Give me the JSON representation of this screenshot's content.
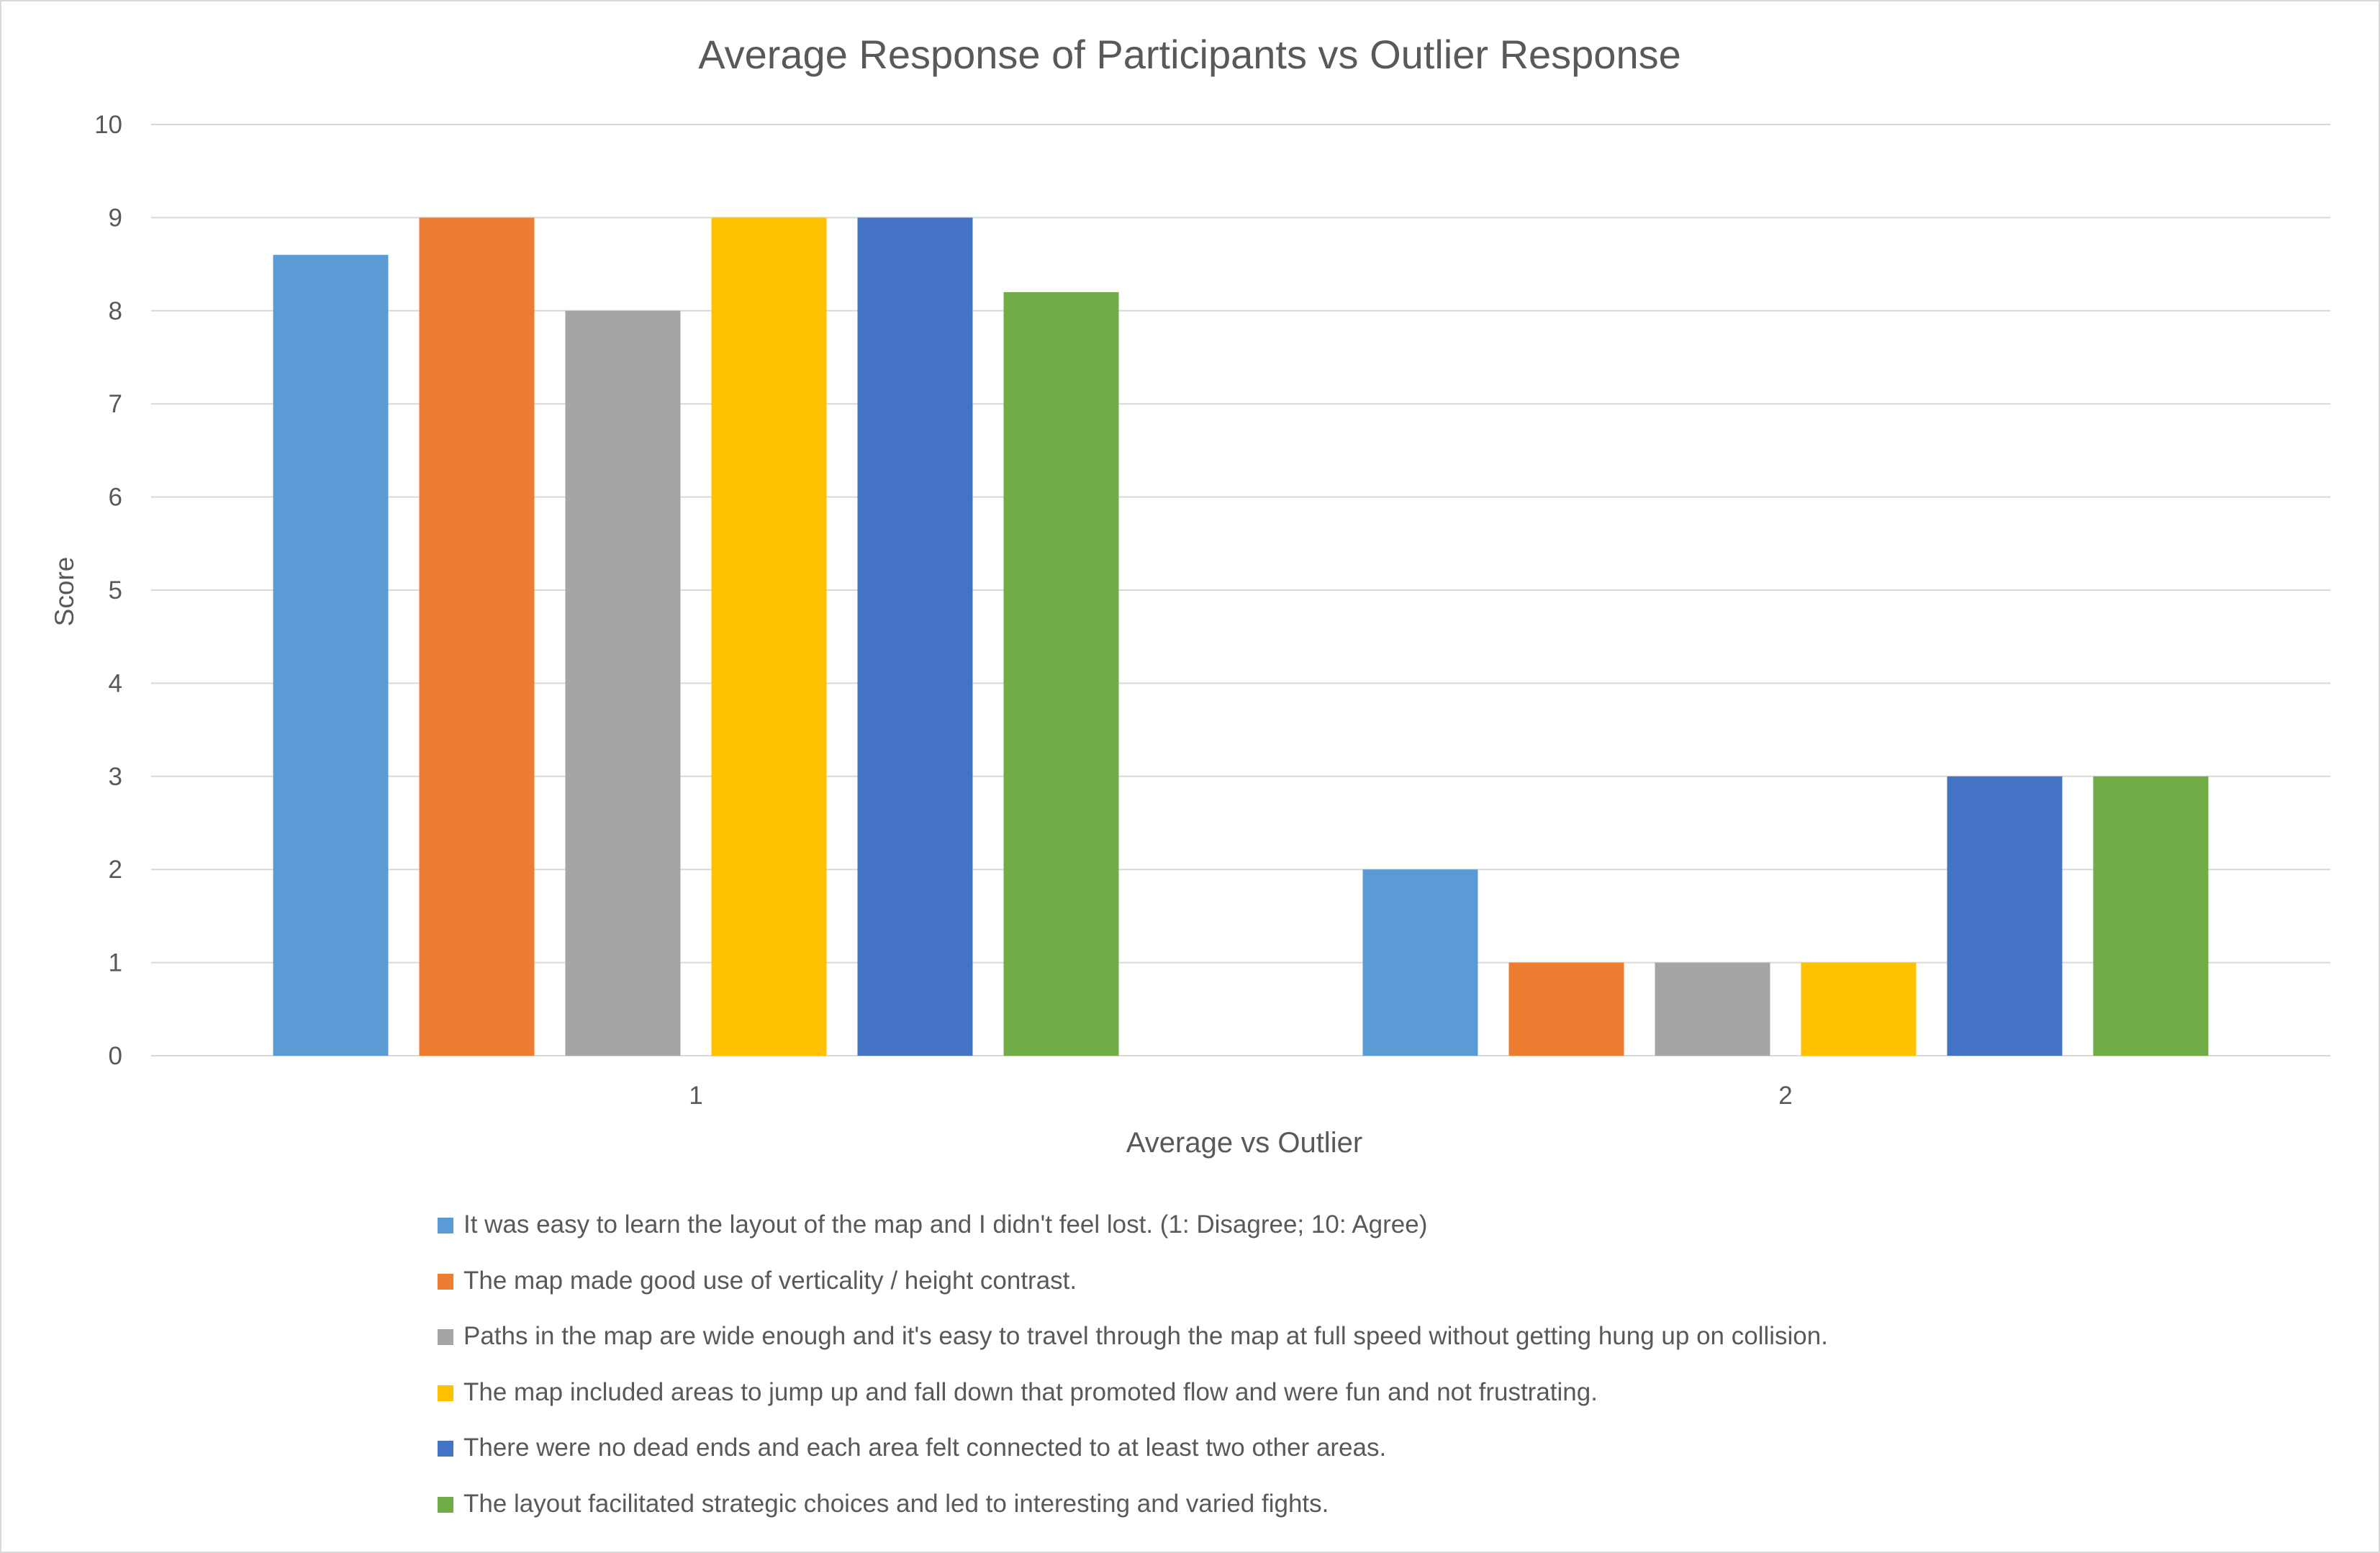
{
  "chart_data": {
    "type": "bar",
    "title": "Average Response of Participants vs Outlier Response",
    "xlabel": "Average vs Outlier",
    "ylabel": "Score",
    "categories": [
      "1",
      "2"
    ],
    "ylim": [
      0,
      10
    ],
    "yticks": [
      "0",
      "1",
      "2",
      "3",
      "4",
      "5",
      "6",
      "7",
      "8",
      "9",
      "10"
    ],
    "grid": true,
    "legend_position": "bottom",
    "series": [
      {
        "name": "It was easy to learn the layout of the map and I didn't feel lost. (1: Disagree; 10: Agree)",
        "color": "#5b9bd5",
        "values": [
          8.6,
          2
        ]
      },
      {
        "name": "The map made good use of verticality / height contrast.",
        "color": "#ed7d31",
        "values": [
          9,
          1
        ]
      },
      {
        "name": "Paths in the map are wide enough and it's easy to travel through the map at full speed without getting hung up on collision.",
        "color": "#a5a5a5",
        "values": [
          8,
          1
        ]
      },
      {
        "name": "The map included areas to jump up and fall down that promoted flow and were fun and not frustrating.",
        "color": "#ffc000",
        "values": [
          9,
          1
        ]
      },
      {
        "name": "There were no dead ends and each area felt connected to at least two other areas.",
        "color": "#4472c4",
        "values": [
          9,
          3
        ]
      },
      {
        "name": "The layout facilitated strategic choices and led to interesting and varied fights.",
        "color": "#70ad47",
        "values": [
          8.2,
          3
        ]
      }
    ]
  }
}
